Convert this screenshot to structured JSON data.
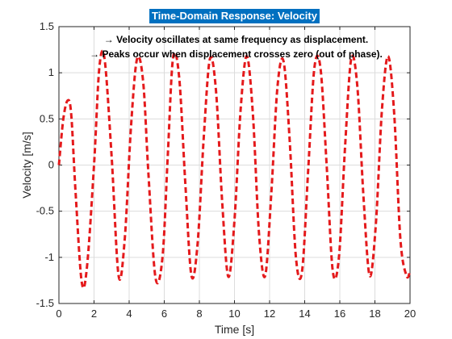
{
  "chart_data": {
    "type": "line",
    "title": "Time-Domain Response: Velocity",
    "xlabel": "Time [s]",
    "ylabel": "Velocity [m/s]",
    "xlim": [
      0,
      20
    ],
    "ylim": [
      -1.5,
      1.5
    ],
    "xticks": [
      0,
      2,
      4,
      6,
      8,
      10,
      12,
      14,
      16,
      18,
      20
    ],
    "yticks": [
      -1.5,
      -1,
      -0.5,
      0,
      0.5,
      1,
      1.5
    ],
    "grid": true,
    "annotations": [
      "→ Velocity oscillates at same frequency as displacement.",
      "→ Peaks occur when displacement crosses zero (out of phase)."
    ],
    "series": [
      {
        "color": "#e41a1c",
        "line_style": "dashed",
        "x": [
          0,
          0.25,
          0.5,
          0.7,
          0.95,
          1.3,
          1.6,
          2.0,
          2.3,
          2.6,
          3.0,
          3.4,
          3.75,
          4.1,
          4.45,
          4.8,
          5.1,
          5.5,
          5.9,
          6.2,
          6.5,
          6.85,
          7.2,
          7.55,
          7.9,
          8.25,
          8.6,
          8.95,
          9.3,
          9.65,
          10.0,
          10.35,
          10.7,
          11.05,
          11.4,
          11.75,
          12.1,
          12.45,
          12.8,
          13.15,
          13.5,
          13.85,
          14.2,
          14.55,
          14.9,
          15.25,
          15.6,
          15.95,
          16.3,
          16.65,
          17.0,
          17.35,
          17.7,
          18.05,
          18.4,
          18.75,
          19.1,
          19.45,
          19.8,
          20.0
        ],
        "y": [
          0,
          0.5,
          0.7,
          0.55,
          -0.3,
          -1.27,
          -1.1,
          0.0,
          1.05,
          1.15,
          0.1,
          -1.2,
          -0.8,
          0.4,
          1.15,
          0.9,
          -0.1,
          -1.22,
          -1.0,
          0.1,
          1.16,
          0.95,
          -0.2,
          -1.2,
          -0.85,
          0.3,
          1.15,
          0.8,
          -0.4,
          -1.21,
          -0.6,
          0.6,
          1.18,
          0.55,
          -0.75,
          -1.2,
          -0.3,
          0.85,
          1.12,
          0.25,
          -1.0,
          -1.15,
          -0.05,
          1.05,
          1.05,
          0.0,
          -1.15,
          -1.0,
          0.2,
          1.15,
          0.85,
          -0.35,
          -1.2,
          -0.65,
          0.6,
          1.18,
          0.55,
          -0.8,
          -1.2,
          -1.15
        ]
      }
    ]
  },
  "styles": {
    "title_bg": "#0070c0",
    "grid_color": "#dcdcdc",
    "axis_color": "#262626"
  }
}
